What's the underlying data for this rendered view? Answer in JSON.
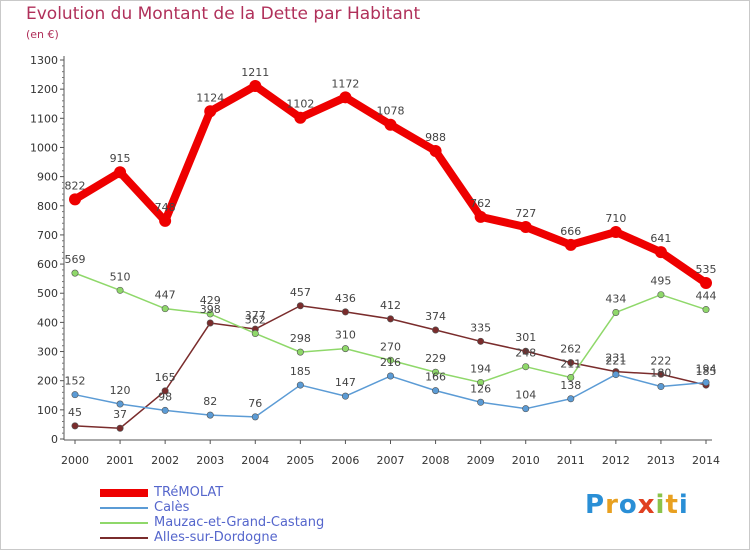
{
  "header": {
    "title": "Evolution du Montant de la Dette par Habitant",
    "unit": "(en €)"
  },
  "chart_data": {
    "type": "line",
    "title": "Evolution du Montant de la Dette par Habitant",
    "ylabel": "(en €)",
    "xlabel": "",
    "ylim": [
      0,
      1300
    ],
    "yticks": [
      0,
      100,
      200,
      300,
      400,
      500,
      600,
      700,
      800,
      900,
      1000,
      1100,
      1200,
      1300
    ],
    "x": [
      "2000",
      "2001",
      "2002",
      "2003",
      "2004",
      "2005",
      "2006",
      "2007",
      "2008",
      "2009",
      "2010",
      "2011",
      "2012",
      "2013",
      "2014"
    ],
    "grid": false,
    "legend_position": "bottom-left",
    "series": [
      {
        "name": "TRéMOLAT",
        "color": "#ee0000",
        "values": [
          822,
          915,
          748,
          1124,
          1211,
          1102,
          1172,
          1078,
          988,
          762,
          727,
          666,
          710,
          641,
          535
        ]
      },
      {
        "name": "Calès",
        "color": "#5b9bd5",
        "values": [
          152,
          120,
          98,
          82,
          76,
          185,
          147,
          216,
          166,
          126,
          104,
          138,
          221,
          180,
          194
        ]
      },
      {
        "name": "Mauzac-et-Grand-Castang",
        "color": "#8fd86a",
        "values": [
          569,
          510,
          447,
          429,
          362,
          298,
          310,
          270,
          229,
          194,
          248,
          211,
          434,
          495,
          444
        ]
      },
      {
        "name": "Alles-sur-Dordogne",
        "color": "#7a2c2c",
        "values": [
          45,
          37,
          165,
          398,
          377,
          457,
          436,
          412,
          374,
          335,
          301,
          262,
          231,
          222,
          185
        ]
      }
    ]
  },
  "logo": {
    "letters": [
      "P",
      "r",
      "o",
      "x",
      "i",
      "t",
      "i"
    ],
    "colors": [
      "#2a8fd6",
      "#e8a020",
      "#2a8fd6",
      "#e04020",
      "#8bc34a",
      "#e8a020",
      "#2a8fd6"
    ]
  }
}
